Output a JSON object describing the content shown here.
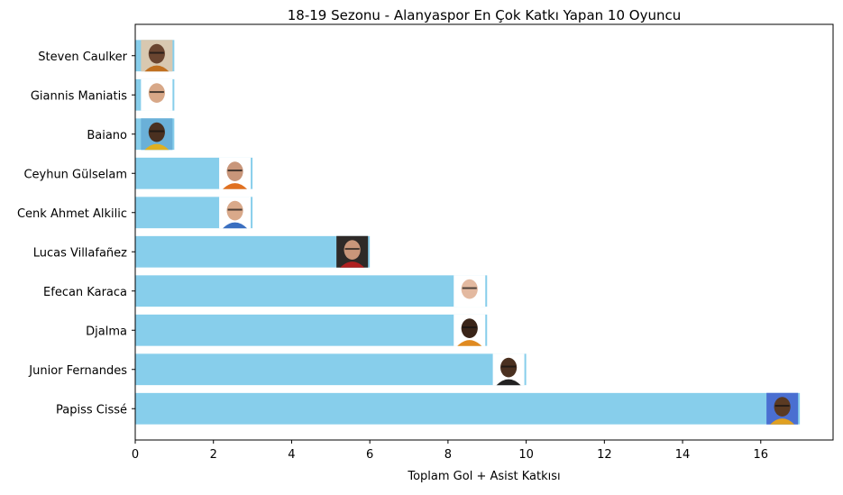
{
  "chart_data": {
    "type": "bar",
    "orientation": "horizontal",
    "title": "18-19 Sezonu - Alanyaspor En Çok Katkı Yapan 10 Oyuncu",
    "xlabel": "Toplam Gol + Asist Katkısı",
    "ylabel": "",
    "xlim": [
      0,
      17.85
    ],
    "xticks": [
      0,
      2,
      4,
      6,
      8,
      10,
      12,
      14,
      16
    ],
    "grid": false,
    "bar_color": "#87CEEB",
    "categories": [
      "Papiss Cissé",
      "Junior Fernandes",
      "Djalma",
      "Efecan Karaca",
      "Lucas Villafañez",
      "Cenk Ahmet Alkilic",
      "Ceyhun Gülselam",
      "Baiano",
      "Giannis Maniatis",
      "Steven Caulker"
    ],
    "values": [
      17,
      10,
      9,
      9,
      6,
      3,
      3,
      1,
      1,
      1
    ],
    "player_photos": [
      {
        "icon": "player-photo-icon",
        "bg": "#4a6fd1",
        "skin": "#5a3a22",
        "shirt": "#e0a020"
      },
      {
        "icon": "player-photo-icon",
        "bg": "#ffffff",
        "skin": "#4a3020",
        "shirt": "#222222"
      },
      {
        "icon": "player-photo-icon",
        "bg": "#ffffff",
        "skin": "#3a2418",
        "shirt": "#e08a20"
      },
      {
        "icon": "player-photo-icon",
        "bg": "#ffffff",
        "skin": "#e3b9a0",
        "shirt": "#ffffff"
      },
      {
        "icon": "player-photo-icon",
        "bg": "#2e2a28",
        "skin": "#c9967a",
        "shirt": "#b02020"
      },
      {
        "icon": "player-photo-icon",
        "bg": "#ffffff",
        "skin": "#d9a98a",
        "shirt": "#3a6fc0"
      },
      {
        "icon": "player-photo-icon",
        "bg": "#ffffff",
        "skin": "#c9967a",
        "shirt": "#e07020"
      },
      {
        "icon": "player-photo-icon",
        "bg": "#6ab0d8",
        "skin": "#4a3020",
        "shirt": "#e0b020"
      },
      {
        "icon": "player-photo-icon",
        "bg": "#ffffff",
        "skin": "#d8a888",
        "shirt": "#ffffff"
      },
      {
        "icon": "player-photo-icon",
        "bg": "#d8c8b0",
        "skin": "#6a4530",
        "shirt": "#c07020"
      }
    ]
  }
}
